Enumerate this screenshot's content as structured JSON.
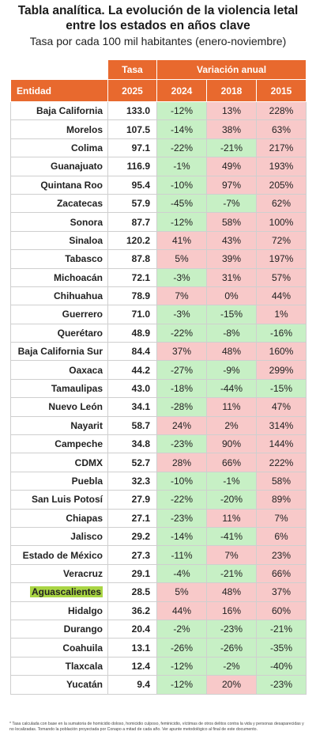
{
  "title_line1": "Tabla analítica. La evolución de la violencia letal",
  "title_line2": "entre los estados en años clave",
  "subtitle": "Tasa por cada 100 mil habitantes (enero-noviembre)",
  "headers": {
    "tasa": "Tasa",
    "variacion": "Variación anual",
    "entidad": "Entidad",
    "y2025": "2025",
    "y2024": "2024",
    "y2018": "2018",
    "y2015": "2015"
  },
  "rows": [
    {
      "entidad": "Baja California",
      "tasa": "133.0",
      "v2024": "-12%",
      "v2018": "13%",
      "v2015": "228%"
    },
    {
      "entidad": "Morelos",
      "tasa": "107.5",
      "v2024": "-14%",
      "v2018": "38%",
      "v2015": "63%"
    },
    {
      "entidad": "Colima",
      "tasa": "97.1",
      "v2024": "-22%",
      "v2018": "-21%",
      "v2015": "217%"
    },
    {
      "entidad": "Guanajuato",
      "tasa": "116.9",
      "v2024": "-1%",
      "v2018": "49%",
      "v2015": "193%"
    },
    {
      "entidad": "Quintana Roo",
      "tasa": "95.4",
      "v2024": "-10%",
      "v2018": "97%",
      "v2015": "205%"
    },
    {
      "entidad": "Zacatecas",
      "tasa": "57.9",
      "v2024": "-45%",
      "v2018": "-7%",
      "v2015": "62%"
    },
    {
      "entidad": "Sonora",
      "tasa": "87.7",
      "v2024": "-12%",
      "v2018": "58%",
      "v2015": "100%"
    },
    {
      "entidad": "Sinaloa",
      "tasa": "120.2",
      "v2024": "41%",
      "v2018": "43%",
      "v2015": "72%"
    },
    {
      "entidad": "Tabasco",
      "tasa": "87.8",
      "v2024": "5%",
      "v2018": "39%",
      "v2015": "197%"
    },
    {
      "entidad": "Michoacán",
      "tasa": "72.1",
      "v2024": "-3%",
      "v2018": "31%",
      "v2015": "57%"
    },
    {
      "entidad": "Chihuahua",
      "tasa": "78.9",
      "v2024": "7%",
      "v2018": "0%",
      "v2015": "44%"
    },
    {
      "entidad": "Guerrero",
      "tasa": "71.0",
      "v2024": "-3%",
      "v2018": "-15%",
      "v2015": "1%"
    },
    {
      "entidad": "Querétaro",
      "tasa": "48.9",
      "v2024": "-22%",
      "v2018": "-8%",
      "v2015": "-16%"
    },
    {
      "entidad": "Baja California Sur",
      "tasa": "84.4",
      "v2024": "37%",
      "v2018": "48%",
      "v2015": "160%"
    },
    {
      "entidad": "Oaxaca",
      "tasa": "44.2",
      "v2024": "-27%",
      "v2018": "-9%",
      "v2015": "299%"
    },
    {
      "entidad": "Tamaulipas",
      "tasa": "43.0",
      "v2024": "-18%",
      "v2018": "-44%",
      "v2015": "-15%"
    },
    {
      "entidad": "Nuevo León",
      "tasa": "34.1",
      "v2024": "-28%",
      "v2018": "11%",
      "v2015": "47%"
    },
    {
      "entidad": "Nayarit",
      "tasa": "58.7",
      "v2024": "24%",
      "v2018": "2%",
      "v2015": "314%"
    },
    {
      "entidad": "Campeche",
      "tasa": "34.8",
      "v2024": "-23%",
      "v2018": "90%",
      "v2015": "144%"
    },
    {
      "entidad": "CDMX",
      "tasa": "52.7",
      "v2024": "28%",
      "v2018": "66%",
      "v2015": "222%"
    },
    {
      "entidad": "Puebla",
      "tasa": "32.3",
      "v2024": "-10%",
      "v2018": "-1%",
      "v2015": "58%"
    },
    {
      "entidad": "San Luis Potosí",
      "tasa": "27.9",
      "v2024": "-22%",
      "v2018": "-20%",
      "v2015": "89%"
    },
    {
      "entidad": "Chiapas",
      "tasa": "27.1",
      "v2024": "-23%",
      "v2018": "11%",
      "v2015": "7%"
    },
    {
      "entidad": "Jalisco",
      "tasa": "29.2",
      "v2024": "-14%",
      "v2018": "-41%",
      "v2015": "6%"
    },
    {
      "entidad": "Estado de México",
      "tasa": "27.3",
      "v2024": "-11%",
      "v2018": "7%",
      "v2015": "23%"
    },
    {
      "entidad": "Veracruz",
      "tasa": "29.1",
      "v2024": "-4%",
      "v2018": "-21%",
      "v2015": "66%"
    },
    {
      "entidad": "Aguascalientes",
      "tasa": "28.5",
      "v2024": "5%",
      "v2018": "48%",
      "v2015": "37%",
      "highlight": true
    },
    {
      "entidad": "Hidalgo",
      "tasa": "36.2",
      "v2024": "44%",
      "v2018": "16%",
      "v2015": "60%"
    },
    {
      "entidad": "Durango",
      "tasa": "20.4",
      "v2024": "-2%",
      "v2018": "-23%",
      "v2015": "-21%"
    },
    {
      "entidad": "Coahuila",
      "tasa": "13.1",
      "v2024": "-26%",
      "v2018": "-26%",
      "v2015": "-35%"
    },
    {
      "entidad": "Tlaxcala",
      "tasa": "12.4",
      "v2024": "-12%",
      "v2018": "-2%",
      "v2015": "-40%"
    },
    {
      "entidad": "Yucatán",
      "tasa": "9.4",
      "v2024": "-12%",
      "v2018": "20%",
      "v2015": "-23%"
    }
  ],
  "footnote": "* Tasa calculada con base en la sumatoria de homicidio doloso, homicidio culposo, feminicidio, víctimas de otros delitos contra la vida y personas desaparecidas y no localizadas. Tomando la población proyectada por Conapo a mitad de cada año. Ver apunte metodológico al final de este documento.",
  "colors": {
    "header": "#e8692e",
    "decrease": "#c7f0c5",
    "increase": "#f8c9c9",
    "highlight": "#a9d544"
  },
  "chart_data": {
    "type": "table",
    "columns": [
      "Entidad",
      "2025",
      "2024",
      "2018",
      "2015"
    ]
  }
}
